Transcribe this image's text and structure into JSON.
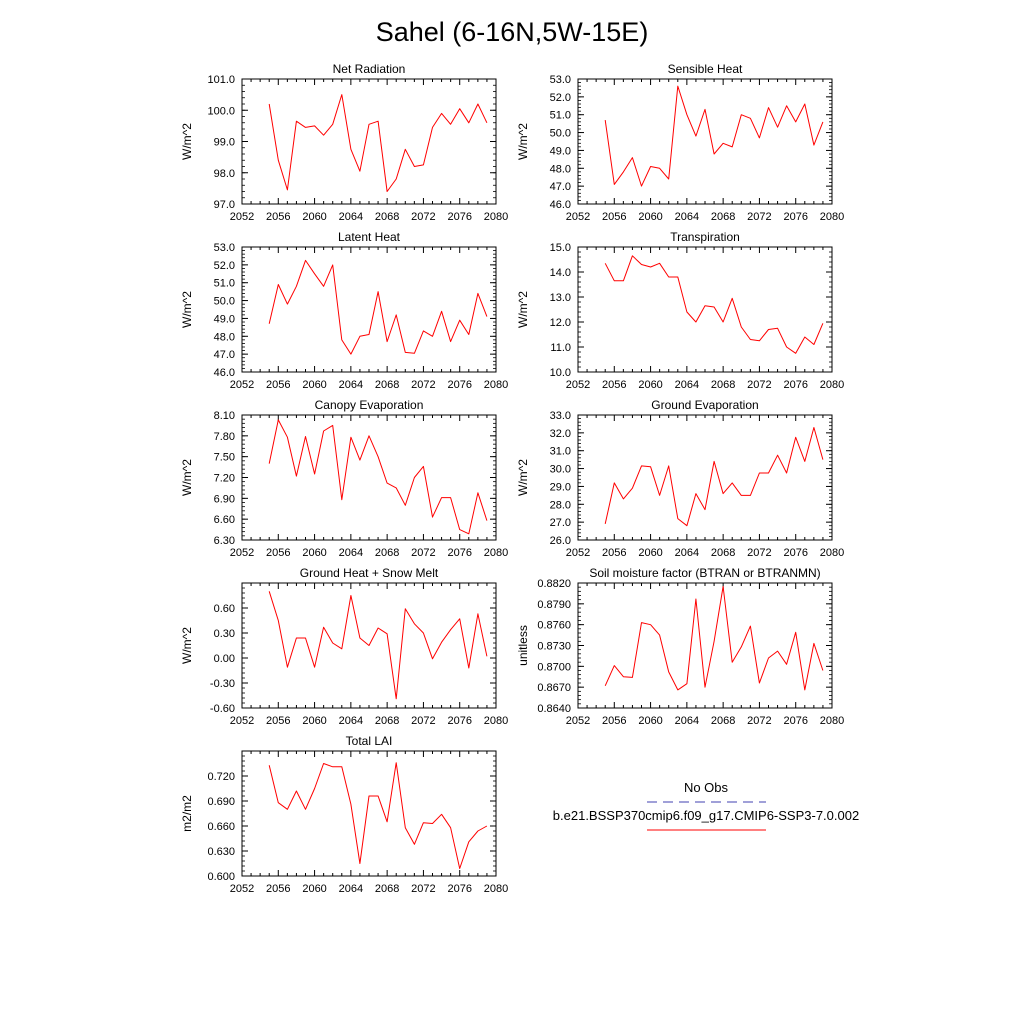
{
  "figure": {
    "title": "Sahel (6-16N,5W-15E)"
  },
  "legend": {
    "obs_label": "No Obs",
    "model_label": "b.e21.BSSP370cmip6.f09_g17.CMIP6-SSP3-7.0.002",
    "obs_color": "#4040b0",
    "model_color": "#ff0000"
  },
  "chart_data": [
    {
      "type": "line",
      "title": "Net Radiation",
      "ylabel": "W/m^2",
      "xlim": [
        2052,
        2080
      ],
      "ylim": [
        97.0,
        101.0
      ],
      "xticks": [
        "2052",
        "2056",
        "2060",
        "2064",
        "2068",
        "2072",
        "2076",
        "2080"
      ],
      "yticks": [
        "97.0",
        "98.0",
        "99.0",
        "100.0",
        "101.0"
      ],
      "series": [
        {
          "color": "#ff0000",
          "x": [
            2055,
            2056,
            2057,
            2058,
            2059,
            2060,
            2061,
            2062,
            2063,
            2064,
            2065,
            2066,
            2067,
            2068,
            2069,
            2070,
            2071,
            2072,
            2073,
            2074,
            2075,
            2076,
            2077,
            2078,
            2079
          ],
          "values": [
            100.2,
            98.4,
            97.45,
            99.65,
            99.45,
            99.5,
            99.2,
            99.55,
            100.5,
            98.75,
            98.05,
            99.55,
            99.65,
            97.4,
            97.8,
            98.75,
            98.2,
            98.25,
            99.45,
            99.9,
            99.55,
            100.05,
            99.6,
            100.2,
            99.6
          ]
        }
      ]
    },
    {
      "type": "line",
      "title": "Sensible Heat",
      "ylabel": "W/m^2",
      "xlim": [
        2052,
        2080
      ],
      "ylim": [
        46.0,
        53.0
      ],
      "xticks": [
        "2052",
        "2056",
        "2060",
        "2064",
        "2068",
        "2072",
        "2076",
        "2080"
      ],
      "yticks": [
        "46.0",
        "47.0",
        "48.0",
        "49.0",
        "50.0",
        "51.0",
        "52.0",
        "53.0"
      ],
      "series": [
        {
          "color": "#ff0000",
          "x": [
            2055,
            2056,
            2057,
            2058,
            2059,
            2060,
            2061,
            2062,
            2063,
            2064,
            2065,
            2066,
            2067,
            2068,
            2069,
            2070,
            2071,
            2072,
            2073,
            2074,
            2075,
            2076,
            2077,
            2078,
            2079
          ],
          "values": [
            50.7,
            47.1,
            47.8,
            48.6,
            47.0,
            48.1,
            48.0,
            47.4,
            52.6,
            51.0,
            49.8,
            51.3,
            48.8,
            49.4,
            49.2,
            51.0,
            50.8,
            49.7,
            51.4,
            50.3,
            51.5,
            50.6,
            51.6,
            49.3,
            50.6
          ]
        }
      ]
    },
    {
      "type": "line",
      "title": "Latent Heat",
      "ylabel": "W/m^2",
      "xlim": [
        2052,
        2080
      ],
      "ylim": [
        46.0,
        53.0
      ],
      "xticks": [
        "2052",
        "2056",
        "2060",
        "2064",
        "2068",
        "2072",
        "2076",
        "2080"
      ],
      "yticks": [
        "46.0",
        "47.0",
        "48.0",
        "49.0",
        "50.0",
        "51.0",
        "52.0",
        "53.0"
      ],
      "series": [
        {
          "color": "#ff0000",
          "x": [
            2055,
            2056,
            2057,
            2058,
            2059,
            2060,
            2061,
            2062,
            2063,
            2064,
            2065,
            2066,
            2067,
            2068,
            2069,
            2070,
            2071,
            2072,
            2073,
            2074,
            2075,
            2076,
            2077,
            2078,
            2079
          ],
          "values": [
            48.7,
            50.9,
            49.8,
            50.8,
            52.25,
            51.5,
            50.8,
            52.0,
            47.8,
            47.0,
            48.0,
            48.1,
            50.5,
            47.7,
            49.2,
            47.1,
            47.05,
            48.3,
            48.0,
            49.4,
            47.7,
            48.9,
            48.1,
            50.4,
            49.1
          ]
        }
      ]
    },
    {
      "type": "line",
      "title": "Transpiration",
      "ylabel": "W/m^2",
      "xlim": [
        2052,
        2080
      ],
      "ylim": [
        10.0,
        15.0
      ],
      "xticks": [
        "2052",
        "2056",
        "2060",
        "2064",
        "2068",
        "2072",
        "2076",
        "2080"
      ],
      "yticks": [
        "10.0",
        "11.0",
        "12.0",
        "13.0",
        "14.0",
        "15.0"
      ],
      "series": [
        {
          "color": "#ff0000",
          "x": [
            2055,
            2056,
            2057,
            2058,
            2059,
            2060,
            2061,
            2062,
            2063,
            2064,
            2065,
            2066,
            2067,
            2068,
            2069,
            2070,
            2071,
            2072,
            2073,
            2074,
            2075,
            2076,
            2077,
            2078,
            2079
          ],
          "values": [
            14.35,
            13.65,
            13.65,
            14.65,
            14.3,
            14.2,
            14.35,
            13.8,
            13.8,
            12.4,
            12.0,
            12.65,
            12.6,
            12.0,
            12.95,
            11.8,
            11.3,
            11.25,
            11.7,
            11.75,
            11.0,
            10.75,
            11.4,
            11.1,
            11.95
          ]
        }
      ]
    },
    {
      "type": "line",
      "title": "Canopy Evaporation",
      "ylabel": "W/m^2",
      "xlim": [
        2052,
        2080
      ],
      "ylim": [
        6.3,
        8.1
      ],
      "xticks": [
        "2052",
        "2056",
        "2060",
        "2064",
        "2068",
        "2072",
        "2076",
        "2080"
      ],
      "yticks": [
        "6.30",
        "6.60",
        "6.90",
        "7.20",
        "7.50",
        "7.80",
        "8.10"
      ],
      "series": [
        {
          "color": "#ff0000",
          "x": [
            2055,
            2056,
            2057,
            2058,
            2059,
            2060,
            2061,
            2062,
            2063,
            2064,
            2065,
            2066,
            2067,
            2068,
            2069,
            2070,
            2071,
            2072,
            2073,
            2074,
            2075,
            2076,
            2077,
            2078,
            2079
          ],
          "values": [
            7.4,
            8.03,
            7.78,
            7.22,
            7.79,
            7.25,
            7.87,
            7.95,
            6.88,
            7.78,
            7.45,
            7.8,
            7.5,
            7.12,
            7.05,
            6.8,
            7.2,
            7.36,
            6.63,
            6.91,
            6.91,
            6.45,
            6.39,
            6.98,
            6.58
          ]
        }
      ]
    },
    {
      "type": "line",
      "title": "Ground Evaporation",
      "ylabel": "W/m^2",
      "xlim": [
        2052,
        2080
      ],
      "ylim": [
        26.0,
        33.0
      ],
      "xticks": [
        "2052",
        "2056",
        "2060",
        "2064",
        "2068",
        "2072",
        "2076",
        "2080"
      ],
      "yticks": [
        "26.0",
        "27.0",
        "28.0",
        "29.0",
        "30.0",
        "31.0",
        "32.0",
        "33.0"
      ],
      "series": [
        {
          "color": "#ff0000",
          "x": [
            2055,
            2056,
            2057,
            2058,
            2059,
            2060,
            2061,
            2062,
            2063,
            2064,
            2065,
            2066,
            2067,
            2068,
            2069,
            2070,
            2071,
            2072,
            2073,
            2074,
            2075,
            2076,
            2077,
            2078,
            2079
          ],
          "values": [
            26.9,
            29.2,
            28.3,
            28.9,
            30.15,
            30.1,
            28.5,
            30.15,
            27.2,
            26.8,
            28.6,
            27.7,
            30.4,
            28.6,
            29.2,
            28.5,
            28.5,
            29.75,
            29.75,
            30.75,
            29.75,
            31.75,
            30.4,
            32.3,
            30.5
          ]
        }
      ]
    },
    {
      "type": "line",
      "title": "Ground Heat + Snow Melt",
      "ylabel": "W/m^2",
      "xlim": [
        2052,
        2080
      ],
      "ylim": [
        -0.6,
        0.9
      ],
      "xticks": [
        "2052",
        "2056",
        "2060",
        "2064",
        "2068",
        "2072",
        "2076",
        "2080"
      ],
      "yticks": [
        "-0.60",
        "-0.30",
        "0.00",
        "0.30",
        "0.60"
      ],
      "series": [
        {
          "color": "#ff0000",
          "x": [
            2055,
            2056,
            2057,
            2058,
            2059,
            2060,
            2061,
            2062,
            2063,
            2064,
            2065,
            2066,
            2067,
            2068,
            2069,
            2070,
            2071,
            2072,
            2073,
            2074,
            2075,
            2076,
            2077,
            2078,
            2079
          ],
          "values": [
            0.8,
            0.45,
            -0.11,
            0.24,
            0.24,
            -0.11,
            0.37,
            0.18,
            0.11,
            0.75,
            0.24,
            0.15,
            0.36,
            0.29,
            -0.49,
            0.59,
            0.41,
            0.3,
            -0.01,
            0.19,
            0.34,
            0.47,
            -0.12,
            0.53,
            0.02
          ]
        }
      ]
    },
    {
      "type": "line",
      "title": "Soil moisture factor (BTRAN or BTRANMN)",
      "ylabel": "unitless",
      "xlim": [
        2052,
        2080
      ],
      "ylim": [
        0.864,
        0.882
      ],
      "xticks": [
        "2052",
        "2056",
        "2060",
        "2064",
        "2068",
        "2072",
        "2076",
        "2080"
      ],
      "yticks": [
        "0.8640",
        "0.8670",
        "0.8700",
        "0.8730",
        "0.8760",
        "0.8790",
        "0.8820"
      ],
      "series": [
        {
          "color": "#ff0000",
          "x": [
            2055,
            2056,
            2057,
            2058,
            2059,
            2060,
            2061,
            2062,
            2063,
            2064,
            2065,
            2066,
            2067,
            2068,
            2069,
            2070,
            2071,
            2072,
            2073,
            2074,
            2075,
            2076,
            2077,
            2078,
            2079
          ],
          "values": [
            0.8672,
            0.8701,
            0.8685,
            0.8684,
            0.8763,
            0.876,
            0.8745,
            0.8692,
            0.8666,
            0.8675,
            0.8797,
            0.867,
            0.8736,
            0.8815,
            0.8706,
            0.8728,
            0.8758,
            0.8676,
            0.8712,
            0.8722,
            0.8703,
            0.8749,
            0.8666,
            0.8733,
            0.8694
          ]
        }
      ]
    },
    {
      "type": "line",
      "title": "Total LAI",
      "ylabel": "m2/m2",
      "xlim": [
        2052,
        2080
      ],
      "ylim": [
        0.6,
        0.75
      ],
      "xticks": [
        "2052",
        "2056",
        "2060",
        "2064",
        "2068",
        "2072",
        "2076",
        "2080"
      ],
      "yticks": [
        "0.600",
        "0.630",
        "0.660",
        "0.690",
        "0.720"
      ],
      "series": [
        {
          "color": "#ff0000",
          "x": [
            2055,
            2056,
            2057,
            2058,
            2059,
            2060,
            2061,
            2062,
            2063,
            2064,
            2065,
            2066,
            2067,
            2068,
            2069,
            2070,
            2071,
            2072,
            2073,
            2074,
            2075,
            2076,
            2077,
            2078,
            2079
          ],
          "values": [
            0.733,
            0.688,
            0.68,
            0.702,
            0.68,
            0.705,
            0.735,
            0.731,
            0.731,
            0.686,
            0.615,
            0.696,
            0.696,
            0.665,
            0.736,
            0.658,
            0.638,
            0.664,
            0.663,
            0.674,
            0.658,
            0.609,
            0.641,
            0.654,
            0.66
          ]
        }
      ]
    }
  ]
}
